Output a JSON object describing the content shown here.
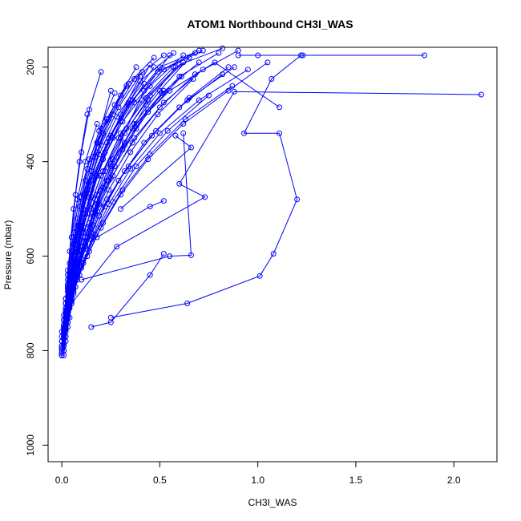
{
  "chart_data": {
    "type": "line",
    "title": "ATOM1 Northbound CH3I_WAS",
    "xlabel": "CH3I_WAS",
    "ylabel": "Pressure (mbar)",
    "xlim": [
      -0.07,
      2.22
    ],
    "ylim": [
      1035,
      158
    ],
    "y_reversed": true,
    "xticks": [
      0.0,
      0.5,
      1.0,
      1.5,
      2.0
    ],
    "xtick_labels": [
      "0.0",
      "0.5",
      "1.0",
      "1.5",
      "2.0"
    ],
    "yticks": [
      200,
      400,
      600,
      800,
      1000
    ],
    "ytick_labels": [
      "200",
      "400",
      "600",
      "800",
      "1000"
    ],
    "grid": false,
    "legend": "none",
    "color": "#0000ff",
    "marker": "open-circle",
    "series": [
      {
        "x": [
          0.0,
          0.01,
          0.02,
          0.04,
          0.06,
          0.1,
          0.15,
          0.2,
          0.25
        ],
        "y": [
          810,
          770,
          730,
          680,
          600,
          520,
          420,
          330,
          250
        ]
      },
      {
        "x": [
          0.01,
          0.02,
          0.03,
          0.05,
          0.08,
          0.12,
          0.18,
          0.26,
          0.35,
          0.45
        ],
        "y": [
          800,
          760,
          720,
          660,
          590,
          510,
          430,
          350,
          270,
          195
        ]
      },
      {
        "x": [
          0.0,
          0.01,
          0.02,
          0.03,
          0.05,
          0.07,
          0.1,
          0.14,
          0.2
        ],
        "y": [
          790,
          750,
          700,
          640,
          560,
          470,
          380,
          290,
          210
        ]
      },
      {
        "x": [
          0.02,
          0.03,
          0.05,
          0.08,
          0.12,
          0.18,
          0.25,
          0.33,
          0.42,
          0.55
        ],
        "y": [
          780,
          740,
          690,
          630,
          560,
          490,
          410,
          330,
          250,
          175
        ]
      },
      {
        "x": [
          0.01,
          0.02,
          0.02,
          0.03,
          0.04,
          0.06,
          0.09,
          0.13
        ],
        "y": [
          810,
          770,
          720,
          660,
          590,
          500,
          400,
          300
        ]
      },
      {
        "x": [
          0.0,
          0.02,
          0.04,
          0.07,
          0.1,
          0.15,
          0.22,
          0.3,
          0.4
        ],
        "y": [
          760,
          720,
          670,
          610,
          540,
          460,
          380,
          300,
          220
        ]
      },
      {
        "x": [
          0.03,
          0.05,
          0.08,
          0.12,
          0.17,
          0.24,
          0.32,
          0.43,
          0.58
        ],
        "y": [
          750,
          700,
          640,
          580,
          510,
          440,
          360,
          280,
          200
        ]
      },
      {
        "x": [
          0.01,
          0.01,
          0.02,
          0.03,
          0.05,
          0.08,
          0.12,
          0.18,
          0.27,
          0.38
        ],
        "y": [
          790,
          745,
          700,
          650,
          590,
          520,
          440,
          360,
          280,
          200
        ]
      },
      {
        "x": [
          0.0,
          0.01,
          0.03,
          0.05,
          0.08,
          0.11,
          0.16,
          0.23
        ],
        "y": [
          770,
          725,
          675,
          615,
          545,
          470,
          390,
          310
        ]
      },
      {
        "x": [
          0.02,
          0.04,
          0.06,
          0.1,
          0.14,
          0.2,
          0.28,
          0.37,
          0.5,
          0.65
        ],
        "y": [
          740,
          700,
          650,
          590,
          530,
          460,
          390,
          320,
          250,
          180
        ]
      },
      {
        "x": [
          0.01,
          0.02,
          0.03,
          0.04,
          0.06,
          0.09,
          0.13,
          0.19,
          0.27
        ],
        "y": [
          800,
          755,
          705,
          645,
          575,
          495,
          415,
          335,
          255
        ]
      },
      {
        "x": [
          0.0,
          0.01,
          0.02,
          0.04,
          0.07,
          0.11,
          0.17,
          0.25,
          0.36,
          0.5,
          0.7
        ],
        "y": [
          780,
          735,
          690,
          635,
          570,
          500,
          425,
          345,
          270,
          200,
          165
        ]
      },
      {
        "x": [
          0.04,
          0.06,
          0.09,
          0.13,
          0.19,
          0.27,
          0.38,
          0.52
        ],
        "y": [
          730,
          680,
          620,
          560,
          490,
          410,
          330,
          250
        ]
      },
      {
        "x": [
          0.02,
          0.03,
          0.05,
          0.07,
          0.1,
          0.15,
          0.21,
          0.3,
          0.42
        ],
        "y": [
          770,
          730,
          680,
          620,
          550,
          475,
          395,
          315,
          235
        ]
      },
      {
        "x": [
          0.01,
          0.02,
          0.04,
          0.06,
          0.09,
          0.13,
          0.19,
          0.28,
          0.4,
          0.57
        ],
        "y": [
          760,
          715,
          665,
          605,
          535,
          460,
          385,
          305,
          230,
          170
        ]
      },
      {
        "x": [
          0.0,
          0.01,
          0.01,
          0.02,
          0.03,
          0.05,
          0.08,
          0.12,
          0.18
        ],
        "y": [
          810,
          775,
          735,
          690,
          630,
          560,
          480,
          400,
          320
        ]
      },
      {
        "x": [
          0.03,
          0.05,
          0.07,
          0.11,
          0.16,
          0.23,
          0.32,
          0.44,
          0.6,
          0.8
        ],
        "y": [
          740,
          695,
          645,
          585,
          515,
          440,
          365,
          290,
          220,
          170
        ]
      },
      {
        "x": [
          0.01,
          0.02,
          0.03,
          0.05,
          0.08,
          0.12,
          0.17,
          0.24,
          0.34,
          0.47
        ],
        "y": [
          790,
          750,
          705,
          650,
          585,
          510,
          430,
          350,
          275,
          200
        ]
      },
      {
        "x": [
          0.02,
          0.04,
          0.07,
          0.11,
          0.17,
          0.25,
          0.36,
          0.5,
          0.68,
          0.9
        ],
        "y": [
          720,
          680,
          630,
          570,
          505,
          435,
          360,
          285,
          215,
          165
        ]
      },
      {
        "x": [
          0.0,
          0.01,
          0.02,
          0.03,
          0.05,
          0.08,
          0.12,
          0.18,
          0.26,
          0.37,
          0.52
        ],
        "y": [
          800,
          760,
          715,
          665,
          605,
          535,
          460,
          380,
          300,
          225,
          175
        ]
      },
      {
        "x": [
          0.15,
          0.25,
          0.45,
          0.52
        ],
        "y": [
          750,
          740,
          640,
          595
        ]
      },
      {
        "x": [
          0.25,
          0.64,
          1.01,
          1.08,
          1.2,
          1.11,
          0.93,
          1.07,
          1.22
        ],
        "y": [
          730,
          700,
          642,
          595,
          480,
          340,
          340,
          225,
          175
        ]
      },
      {
        "x": [
          0.05,
          0.28,
          0.73,
          0.6,
          0.88,
          2.14
        ],
        "y": [
          700,
          580,
          475,
          447,
          252,
          258
        ]
      },
      {
        "x": [
          0.1,
          0.55,
          0.66,
          0.62
        ],
        "y": [
          650,
          600,
          598,
          340
        ]
      },
      {
        "x": [
          0.3,
          0.66,
          0.58
        ],
        "y": [
          500,
          370,
          345
        ]
      },
      {
        "x": [
          0.9,
          1.0,
          1.23,
          1.85
        ],
        "y": [
          175,
          175,
          175,
          175
        ]
      },
      {
        "x": [
          0.18,
          0.45,
          0.52
        ],
        "y": [
          560,
          495,
          483
        ]
      },
      {
        "x": [
          0.02,
          0.05,
          0.09,
          0.15,
          0.23,
          0.34,
          0.48,
          0.65,
          0.85
        ],
        "y": [
          700,
          660,
          610,
          550,
          480,
          410,
          335,
          265,
          200
        ]
      },
      {
        "x": [
          0.01,
          0.02,
          0.04,
          0.06,
          0.1,
          0.15,
          0.22,
          0.32,
          0.45,
          0.62
        ],
        "y": [
          770,
          735,
          690,
          635,
          570,
          500,
          420,
          340,
          260,
          190
        ]
      },
      {
        "x": [
          0.0,
          0.02,
          0.03,
          0.05,
          0.07,
          0.1,
          0.14,
          0.2,
          0.29,
          0.41
        ],
        "y": [
          795,
          755,
          710,
          660,
          600,
          525,
          445,
          365,
          285,
          210
        ]
      },
      {
        "x": [
          0.03,
          0.06,
          0.1,
          0.16,
          0.24,
          0.35,
          0.5,
          0.7,
          0.95
        ],
        "y": [
          710,
          670,
          620,
          560,
          490,
          415,
          340,
          270,
          205
        ]
      },
      {
        "x": [
          0.01,
          0.03,
          0.05,
          0.08,
          0.12,
          0.18,
          0.26,
          0.38,
          0.55,
          0.78,
          1.11
        ],
        "y": [
          755,
          715,
          665,
          605,
          540,
          470,
          395,
          320,
          250,
          190,
          285
        ]
      },
      {
        "x": [
          0.02,
          0.03,
          0.05,
          0.08,
          0.13,
          0.2,
          0.3,
          0.44
        ],
        "y": [
          745,
          705,
          650,
          585,
          510,
          430,
          350,
          270
        ]
      },
      {
        "x": [
          0.0,
          0.01,
          0.02,
          0.03,
          0.04,
          0.06,
          0.09,
          0.14,
          0.22,
          0.33
        ],
        "y": [
          805,
          765,
          720,
          670,
          615,
          550,
          475,
          395,
          315,
          240
        ]
      },
      {
        "x": [
          0.04,
          0.08,
          0.13,
          0.2,
          0.3,
          0.44,
          0.62,
          0.85,
          1.05
        ],
        "y": [
          690,
          650,
          600,
          540,
          470,
          395,
          320,
          250,
          190
        ]
      },
      {
        "x": [
          0.01,
          0.02,
          0.03,
          0.05,
          0.07,
          0.1,
          0.15,
          0.21,
          0.3
        ],
        "y": [
          785,
          740,
          695,
          640,
          575,
          500,
          420,
          340,
          260
        ]
      },
      {
        "x": [
          0.02,
          0.04,
          0.07,
          0.12,
          0.19,
          0.29,
          0.42,
          0.6,
          0.82
        ],
        "y": [
          735,
          695,
          645,
          585,
          515,
          440,
          360,
          285,
          215
        ]
      },
      {
        "x": [
          0.0,
          0.01,
          0.02,
          0.04,
          0.06,
          0.09,
          0.14,
          0.21,
          0.31,
          0.45,
          0.62
        ],
        "y": [
          810,
          770,
          730,
          680,
          620,
          550,
          475,
          395,
          315,
          240,
          175
        ]
      },
      {
        "x": [
          0.03,
          0.05,
          0.08,
          0.12,
          0.18,
          0.26,
          0.37,
          0.52,
          0.72
        ],
        "y": [
          725,
          685,
          635,
          575,
          505,
          430,
          350,
          275,
          205
        ]
      },
      {
        "x": [
          0.01,
          0.02,
          0.04,
          0.07,
          0.11,
          0.17,
          0.25,
          0.36,
          0.51,
          0.7
        ],
        "y": [
          765,
          725,
          675,
          615,
          550,
          480,
          405,
          330,
          255,
          190
        ]
      },
      {
        "x": [
          0.05,
          0.09,
          0.14,
          0.21,
          0.31,
          0.45,
          0.63,
          0.87
        ],
        "y": [
          680,
          640,
          590,
          530,
          460,
          385,
          310,
          240
        ]
      },
      {
        "x": [
          0.0,
          0.01,
          0.03,
          0.05,
          0.08,
          0.13,
          0.2,
          0.29,
          0.41,
          0.57
        ],
        "y": [
          790,
          750,
          705,
          650,
          585,
          510,
          430,
          350,
          270,
          200
        ]
      },
      {
        "x": [
          0.02,
          0.03,
          0.06,
          0.1,
          0.16,
          0.24,
          0.35,
          0.49,
          0.67
        ],
        "y": [
          755,
          715,
          665,
          605,
          535,
          460,
          380,
          300,
          225
        ]
      },
      {
        "x": [
          0.01,
          0.01,
          0.02,
          0.03,
          0.05,
          0.08,
          0.12,
          0.17,
          0.24,
          0.34,
          0.47
        ],
        "y": [
          800,
          760,
          715,
          665,
          610,
          545,
          470,
          390,
          310,
          235,
          180
        ]
      },
      {
        "x": [
          0.03,
          0.06,
          0.1,
          0.15,
          0.22,
          0.32,
          0.46,
          0.64,
          0.88
        ],
        "y": [
          715,
          675,
          625,
          565,
          495,
          420,
          345,
          270,
          200
        ]
      },
      {
        "x": [
          0.0,
          0.02,
          0.03,
          0.05,
          0.08,
          0.12,
          0.18,
          0.26,
          0.37,
          0.52,
          0.72
        ],
        "y": [
          780,
          740,
          695,
          640,
          575,
          505,
          430,
          350,
          275,
          205,
          165
        ]
      },
      {
        "x": [
          0.02,
          0.04,
          0.06,
          0.09,
          0.14,
          0.21,
          0.31,
          0.44,
          0.61
        ],
        "y": [
          750,
          710,
          660,
          600,
          530,
          455,
          375,
          295,
          220
        ]
      },
      {
        "x": [
          0.01,
          0.02,
          0.03,
          0.06,
          0.09,
          0.14,
          0.21,
          0.3,
          0.43,
          0.6,
          0.82
        ],
        "y": [
          770,
          730,
          685,
          630,
          565,
          495,
          420,
          340,
          265,
          195,
          160
        ]
      },
      {
        "x": [
          0.04,
          0.07,
          0.11,
          0.17,
          0.26,
          0.38,
          0.54,
          0.75
        ],
        "y": [
          705,
          665,
          615,
          555,
          485,
          410,
          335,
          260
        ]
      },
      {
        "x": [
          0.0,
          0.01,
          0.02,
          0.04,
          0.06,
          0.1,
          0.15,
          0.23,
          0.34,
          0.49,
          0.68
        ],
        "y": [
          795,
          755,
          710,
          655,
          590,
          520,
          440,
          360,
          280,
          210,
          170
        ]
      }
    ]
  }
}
